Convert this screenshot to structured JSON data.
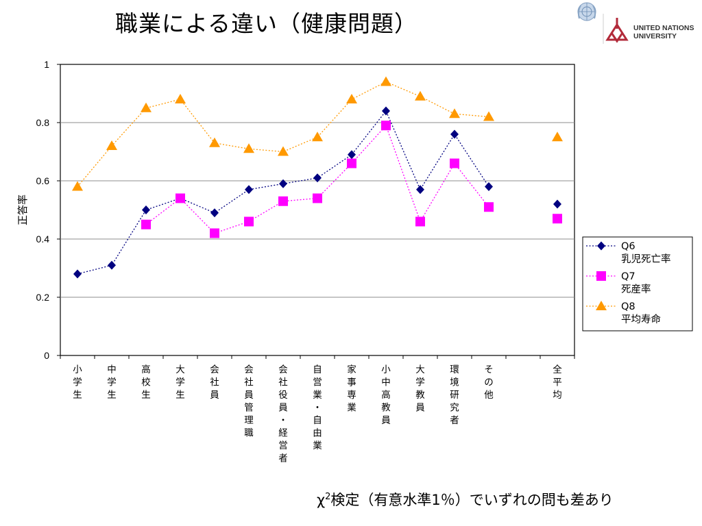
{
  "title": "職業による違い（健康問題）",
  "org": {
    "name_line1": "UNITED NATIONS",
    "name_line2": "UNIVERSITY",
    "un_emblem_icon": "un-emblem-icon",
    "unu_logo_icon": "unu-logo-icon",
    "accent_color": "#b22a3a"
  },
  "footnote": {
    "chi": "χ",
    "sup": "2",
    "rest": "検定（有意水準1％）でいずれの問も差あり"
  },
  "chart_data": {
    "type": "line",
    "ylabel": "正答率",
    "xlabel": "",
    "ylim": [
      0,
      1
    ],
    "yticks": [
      0,
      0.2,
      0.4,
      0.6,
      0.8,
      1
    ],
    "ytick_labels": [
      "0",
      "0.2",
      "0.4",
      "0.6",
      "0.8",
      "1"
    ],
    "grid": true,
    "legend_position": "right",
    "categories": [
      "小学生",
      "中学生",
      "高校生",
      "大学生",
      "会社員",
      "会社員管理職",
      "会社役員・経営者",
      "自営業・自由業",
      "家事専業",
      "小中高教員",
      "大学教員",
      "環境研究者",
      "その他",
      "全平均"
    ],
    "series": [
      {
        "name_line1": "Q6",
        "name_line2": "乳児死亡率",
        "color": "#000080",
        "marker": "diamond",
        "values": [
          0.28,
          0.31,
          0.5,
          0.54,
          0.49,
          0.57,
          0.59,
          0.61,
          0.69,
          0.84,
          0.57,
          0.76,
          0.58,
          0.52
        ]
      },
      {
        "name_line1": "Q7",
        "name_line2": "死産率",
        "color": "#ff00ff",
        "marker": "square",
        "values": [
          null,
          null,
          0.45,
          0.54,
          0.42,
          0.46,
          0.53,
          0.54,
          0.66,
          0.79,
          0.46,
          0.66,
          0.51,
          0.47
        ]
      },
      {
        "name_line1": "Q8",
        "name_line2": "平均寿命",
        "color": "#ff9900",
        "marker": "triangle",
        "values": [
          0.58,
          0.72,
          0.85,
          0.88,
          0.73,
          0.71,
          0.7,
          0.75,
          0.88,
          0.94,
          0.89,
          0.83,
          0.82,
          0.75
        ]
      }
    ]
  }
}
